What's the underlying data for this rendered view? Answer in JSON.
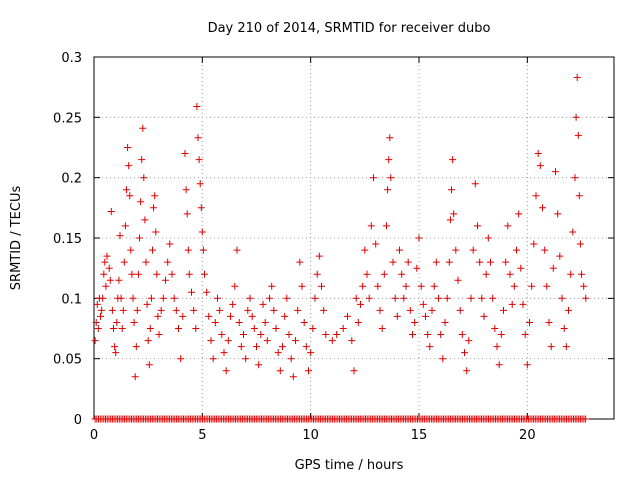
{
  "chart_data": {
    "type": "scatter",
    "title": "Day 210 of 2014, SRMTID for receiver dubo",
    "xlabel": "GPS time / hours",
    "ylabel": "SRMTID / TECUs",
    "xlim": [
      0,
      24
    ],
    "ylim": [
      0,
      0.3
    ],
    "x_ticks": [
      0,
      5,
      10,
      15,
      20
    ],
    "x_tick_labels": [
      "0",
      "5",
      "10",
      "15",
      "20"
    ],
    "y_ticks": [
      0,
      0.05,
      0.1,
      0.15,
      0.2,
      0.25,
      0.3
    ],
    "y_tick_labels": [
      "0",
      "0.05",
      "0.1",
      "0.15",
      "0.2",
      "0.25",
      "0.3"
    ],
    "grid": true,
    "marker": "+",
    "color": "#e00000",
    "series": [
      {
        "name": "SRMTID",
        "points": [
          [
            0.05,
            0.065
          ],
          [
            0.1,
            0.08
          ],
          [
            0.15,
            0.095
          ],
          [
            0.2,
            0.075
          ],
          [
            0.25,
            0.1
          ],
          [
            0.3,
            0.085
          ],
          [
            0.35,
            0.09
          ],
          [
            0.4,
            0.1
          ],
          [
            0.45,
            0.12
          ],
          [
            0.5,
            0.13
          ],
          [
            0.55,
            0.11
          ],
          [
            0.6,
            0.135
          ],
          [
            0.7,
            0.125
          ],
          [
            0.75,
            0.115
          ],
          [
            0.8,
            0.172
          ],
          [
            0.85,
            0.09
          ],
          [
            0.9,
            0.075
          ],
          [
            0.95,
            0.06
          ],
          [
            1.0,
            0.055
          ],
          [
            1.05,
            0.08
          ],
          [
            1.1,
            0.1
          ],
          [
            1.15,
            0.115
          ],
          [
            1.2,
            0.152
          ],
          [
            1.25,
            0.1
          ],
          [
            1.3,
            0.075
          ],
          [
            1.35,
            0.09
          ],
          [
            1.4,
            0.13
          ],
          [
            1.45,
            0.16
          ],
          [
            1.5,
            0.19
          ],
          [
            1.55,
            0.225
          ],
          [
            1.6,
            0.21
          ],
          [
            1.65,
            0.185
          ],
          [
            1.7,
            0.14
          ],
          [
            1.75,
            0.12
          ],
          [
            1.8,
            0.1
          ],
          [
            1.85,
            0.08
          ],
          [
            1.9,
            0.035
          ],
          [
            1.95,
            0.06
          ],
          [
            2.0,
            0.09
          ],
          [
            2.05,
            0.12
          ],
          [
            2.1,
            0.15
          ],
          [
            2.15,
            0.18
          ],
          [
            2.2,
            0.215
          ],
          [
            2.25,
            0.241
          ],
          [
            2.3,
            0.2
          ],
          [
            2.35,
            0.165
          ],
          [
            2.4,
            0.13
          ],
          [
            2.45,
            0.095
          ],
          [
            2.5,
            0.065
          ],
          [
            2.55,
            0.045
          ],
          [
            2.6,
            0.075
          ],
          [
            2.65,
            0.1
          ],
          [
            2.7,
            0.14
          ],
          [
            2.75,
            0.175
          ],
          [
            2.8,
            0.185
          ],
          [
            2.85,
            0.155
          ],
          [
            2.9,
            0.12
          ],
          [
            2.95,
            0.085
          ],
          [
            3.0,
            0.07
          ],
          [
            3.1,
            0.09
          ],
          [
            3.2,
            0.1
          ],
          [
            3.3,
            0.115
          ],
          [
            3.4,
            0.13
          ],
          [
            3.5,
            0.145
          ],
          [
            3.6,
            0.12
          ],
          [
            3.7,
            0.1
          ],
          [
            3.8,
            0.09
          ],
          [
            3.9,
            0.075
          ],
          [
            4.0,
            0.05
          ],
          [
            4.1,
            0.085
          ],
          [
            4.2,
            0.22
          ],
          [
            4.25,
            0.19
          ],
          [
            4.3,
            0.17
          ],
          [
            4.35,
            0.14
          ],
          [
            4.4,
            0.12
          ],
          [
            4.5,
            0.105
          ],
          [
            4.6,
            0.09
          ],
          [
            4.7,
            0.075
          ],
          [
            4.75,
            0.259
          ],
          [
            4.8,
            0.233
          ],
          [
            4.85,
            0.215
          ],
          [
            4.9,
            0.195
          ],
          [
            4.95,
            0.175
          ],
          [
            5.0,
            0.155
          ],
          [
            5.05,
            0.14
          ],
          [
            5.1,
            0.12
          ],
          [
            5.2,
            0.105
          ],
          [
            5.3,
            0.085
          ],
          [
            5.4,
            0.065
          ],
          [
            5.5,
            0.05
          ],
          [
            5.6,
            0.08
          ],
          [
            5.7,
            0.1
          ],
          [
            5.8,
            0.09
          ],
          [
            5.9,
            0.07
          ],
          [
            6.0,
            0.055
          ],
          [
            6.1,
            0.04
          ],
          [
            6.2,
            0.065
          ],
          [
            6.3,
            0.085
          ],
          [
            6.4,
            0.095
          ],
          [
            6.5,
            0.11
          ],
          [
            6.6,
            0.14
          ],
          [
            6.7,
            0.08
          ],
          [
            6.8,
            0.06
          ],
          [
            6.9,
            0.07
          ],
          [
            7.0,
            0.05
          ],
          [
            7.1,
            0.09
          ],
          [
            7.2,
            0.1
          ],
          [
            7.3,
            0.085
          ],
          [
            7.4,
            0.075
          ],
          [
            7.5,
            0.06
          ],
          [
            7.6,
            0.045
          ],
          [
            7.7,
            0.07
          ],
          [
            7.8,
            0.095
          ],
          [
            7.9,
            0.08
          ],
          [
            8.0,
            0.065
          ],
          [
            8.1,
            0.1
          ],
          [
            8.2,
            0.11
          ],
          [
            8.3,
            0.09
          ],
          [
            8.4,
            0.075
          ],
          [
            8.5,
            0.055
          ],
          [
            8.6,
            0.04
          ],
          [
            8.7,
            0.06
          ],
          [
            8.8,
            0.085
          ],
          [
            8.9,
            0.1
          ],
          [
            9.0,
            0.07
          ],
          [
            9.1,
            0.05
          ],
          [
            9.2,
            0.035
          ],
          [
            9.3,
            0.065
          ],
          [
            9.4,
            0.09
          ],
          [
            9.5,
            0.13
          ],
          [
            9.6,
            0.11
          ],
          [
            9.7,
            0.08
          ],
          [
            9.8,
            0.06
          ],
          [
            9.9,
            0.04
          ],
          [
            10.0,
            0.055
          ],
          [
            10.1,
            0.075
          ],
          [
            10.2,
            0.1
          ],
          [
            10.3,
            0.12
          ],
          [
            10.4,
            0.135
          ],
          [
            10.5,
            0.11
          ],
          [
            10.6,
            0.09
          ],
          [
            10.7,
            0.07
          ],
          [
            11.0,
            0.065
          ],
          [
            11.2,
            0.07
          ],
          [
            11.5,
            0.075
          ],
          [
            11.7,
            0.085
          ],
          [
            11.9,
            0.065
          ],
          [
            12.0,
            0.04
          ],
          [
            12.1,
            0.1
          ],
          [
            12.2,
            0.08
          ],
          [
            12.3,
            0.095
          ],
          [
            12.4,
            0.11
          ],
          [
            12.5,
            0.14
          ],
          [
            12.6,
            0.12
          ],
          [
            12.7,
            0.1
          ],
          [
            12.8,
            0.16
          ],
          [
            12.9,
            0.2
          ],
          [
            13.0,
            0.145
          ],
          [
            13.1,
            0.11
          ],
          [
            13.2,
            0.09
          ],
          [
            13.3,
            0.075
          ],
          [
            13.4,
            0.12
          ],
          [
            13.5,
            0.16
          ],
          [
            13.55,
            0.19
          ],
          [
            13.6,
            0.215
          ],
          [
            13.65,
            0.233
          ],
          [
            13.7,
            0.2
          ],
          [
            13.8,
            0.13
          ],
          [
            13.9,
            0.1
          ],
          [
            14.0,
            0.085
          ],
          [
            14.1,
            0.14
          ],
          [
            14.2,
            0.12
          ],
          [
            14.3,
            0.1
          ],
          [
            14.4,
            0.11
          ],
          [
            14.5,
            0.13
          ],
          [
            14.6,
            0.09
          ],
          [
            14.7,
            0.07
          ],
          [
            14.8,
            0.08
          ],
          [
            14.9,
            0.125
          ],
          [
            15.0,
            0.15
          ],
          [
            15.1,
            0.11
          ],
          [
            15.2,
            0.095
          ],
          [
            15.3,
            0.085
          ],
          [
            15.4,
            0.07
          ],
          [
            15.5,
            0.06
          ],
          [
            15.6,
            0.09
          ],
          [
            15.7,
            0.11
          ],
          [
            15.8,
            0.13
          ],
          [
            15.9,
            0.1
          ],
          [
            16.0,
            0.07
          ],
          [
            16.1,
            0.05
          ],
          [
            16.2,
            0.08
          ],
          [
            16.3,
            0.1
          ],
          [
            16.4,
            0.13
          ],
          [
            16.45,
            0.165
          ],
          [
            16.5,
            0.19
          ],
          [
            16.55,
            0.215
          ],
          [
            16.6,
            0.17
          ],
          [
            16.7,
            0.14
          ],
          [
            16.8,
            0.115
          ],
          [
            16.9,
            0.09
          ],
          [
            17.0,
            0.07
          ],
          [
            17.1,
            0.055
          ],
          [
            17.2,
            0.04
          ],
          [
            17.3,
            0.065
          ],
          [
            17.4,
            0.1
          ],
          [
            17.5,
            0.14
          ],
          [
            17.6,
            0.195
          ],
          [
            17.7,
            0.16
          ],
          [
            17.8,
            0.13
          ],
          [
            17.9,
            0.1
          ],
          [
            18.0,
            0.085
          ],
          [
            18.1,
            0.12
          ],
          [
            18.2,
            0.15
          ],
          [
            18.3,
            0.13
          ],
          [
            18.4,
            0.1
          ],
          [
            18.5,
            0.075
          ],
          [
            18.6,
            0.06
          ],
          [
            18.7,
            0.045
          ],
          [
            18.8,
            0.07
          ],
          [
            18.9,
            0.09
          ],
          [
            19.0,
            0.13
          ],
          [
            19.1,
            0.16
          ],
          [
            19.2,
            0.12
          ],
          [
            19.3,
            0.095
          ],
          [
            19.4,
            0.11
          ],
          [
            19.5,
            0.14
          ],
          [
            19.6,
            0.17
          ],
          [
            19.7,
            0.125
          ],
          [
            19.8,
            0.095
          ],
          [
            19.9,
            0.07
          ],
          [
            20.0,
            0.045
          ],
          [
            20.1,
            0.08
          ],
          [
            20.2,
            0.11
          ],
          [
            20.3,
            0.145
          ],
          [
            20.4,
            0.185
          ],
          [
            20.5,
            0.22
          ],
          [
            20.6,
            0.21
          ],
          [
            20.7,
            0.175
          ],
          [
            20.8,
            0.14
          ],
          [
            20.9,
            0.11
          ],
          [
            21.0,
            0.08
          ],
          [
            21.1,
            0.06
          ],
          [
            21.2,
            0.125
          ],
          [
            21.3,
            0.205
          ],
          [
            21.4,
            0.17
          ],
          [
            21.5,
            0.135
          ],
          [
            21.6,
            0.1
          ],
          [
            21.7,
            0.075
          ],
          [
            21.8,
            0.06
          ],
          [
            21.9,
            0.09
          ],
          [
            22.0,
            0.12
          ],
          [
            22.1,
            0.155
          ],
          [
            22.2,
            0.2
          ],
          [
            22.25,
            0.25
          ],
          [
            22.3,
            0.283
          ],
          [
            22.35,
            0.235
          ],
          [
            22.4,
            0.185
          ],
          [
            22.45,
            0.145
          ],
          [
            22.5,
            0.12
          ],
          [
            22.6,
            0.11
          ],
          [
            22.7,
            0.1
          ]
        ]
      }
    ]
  }
}
